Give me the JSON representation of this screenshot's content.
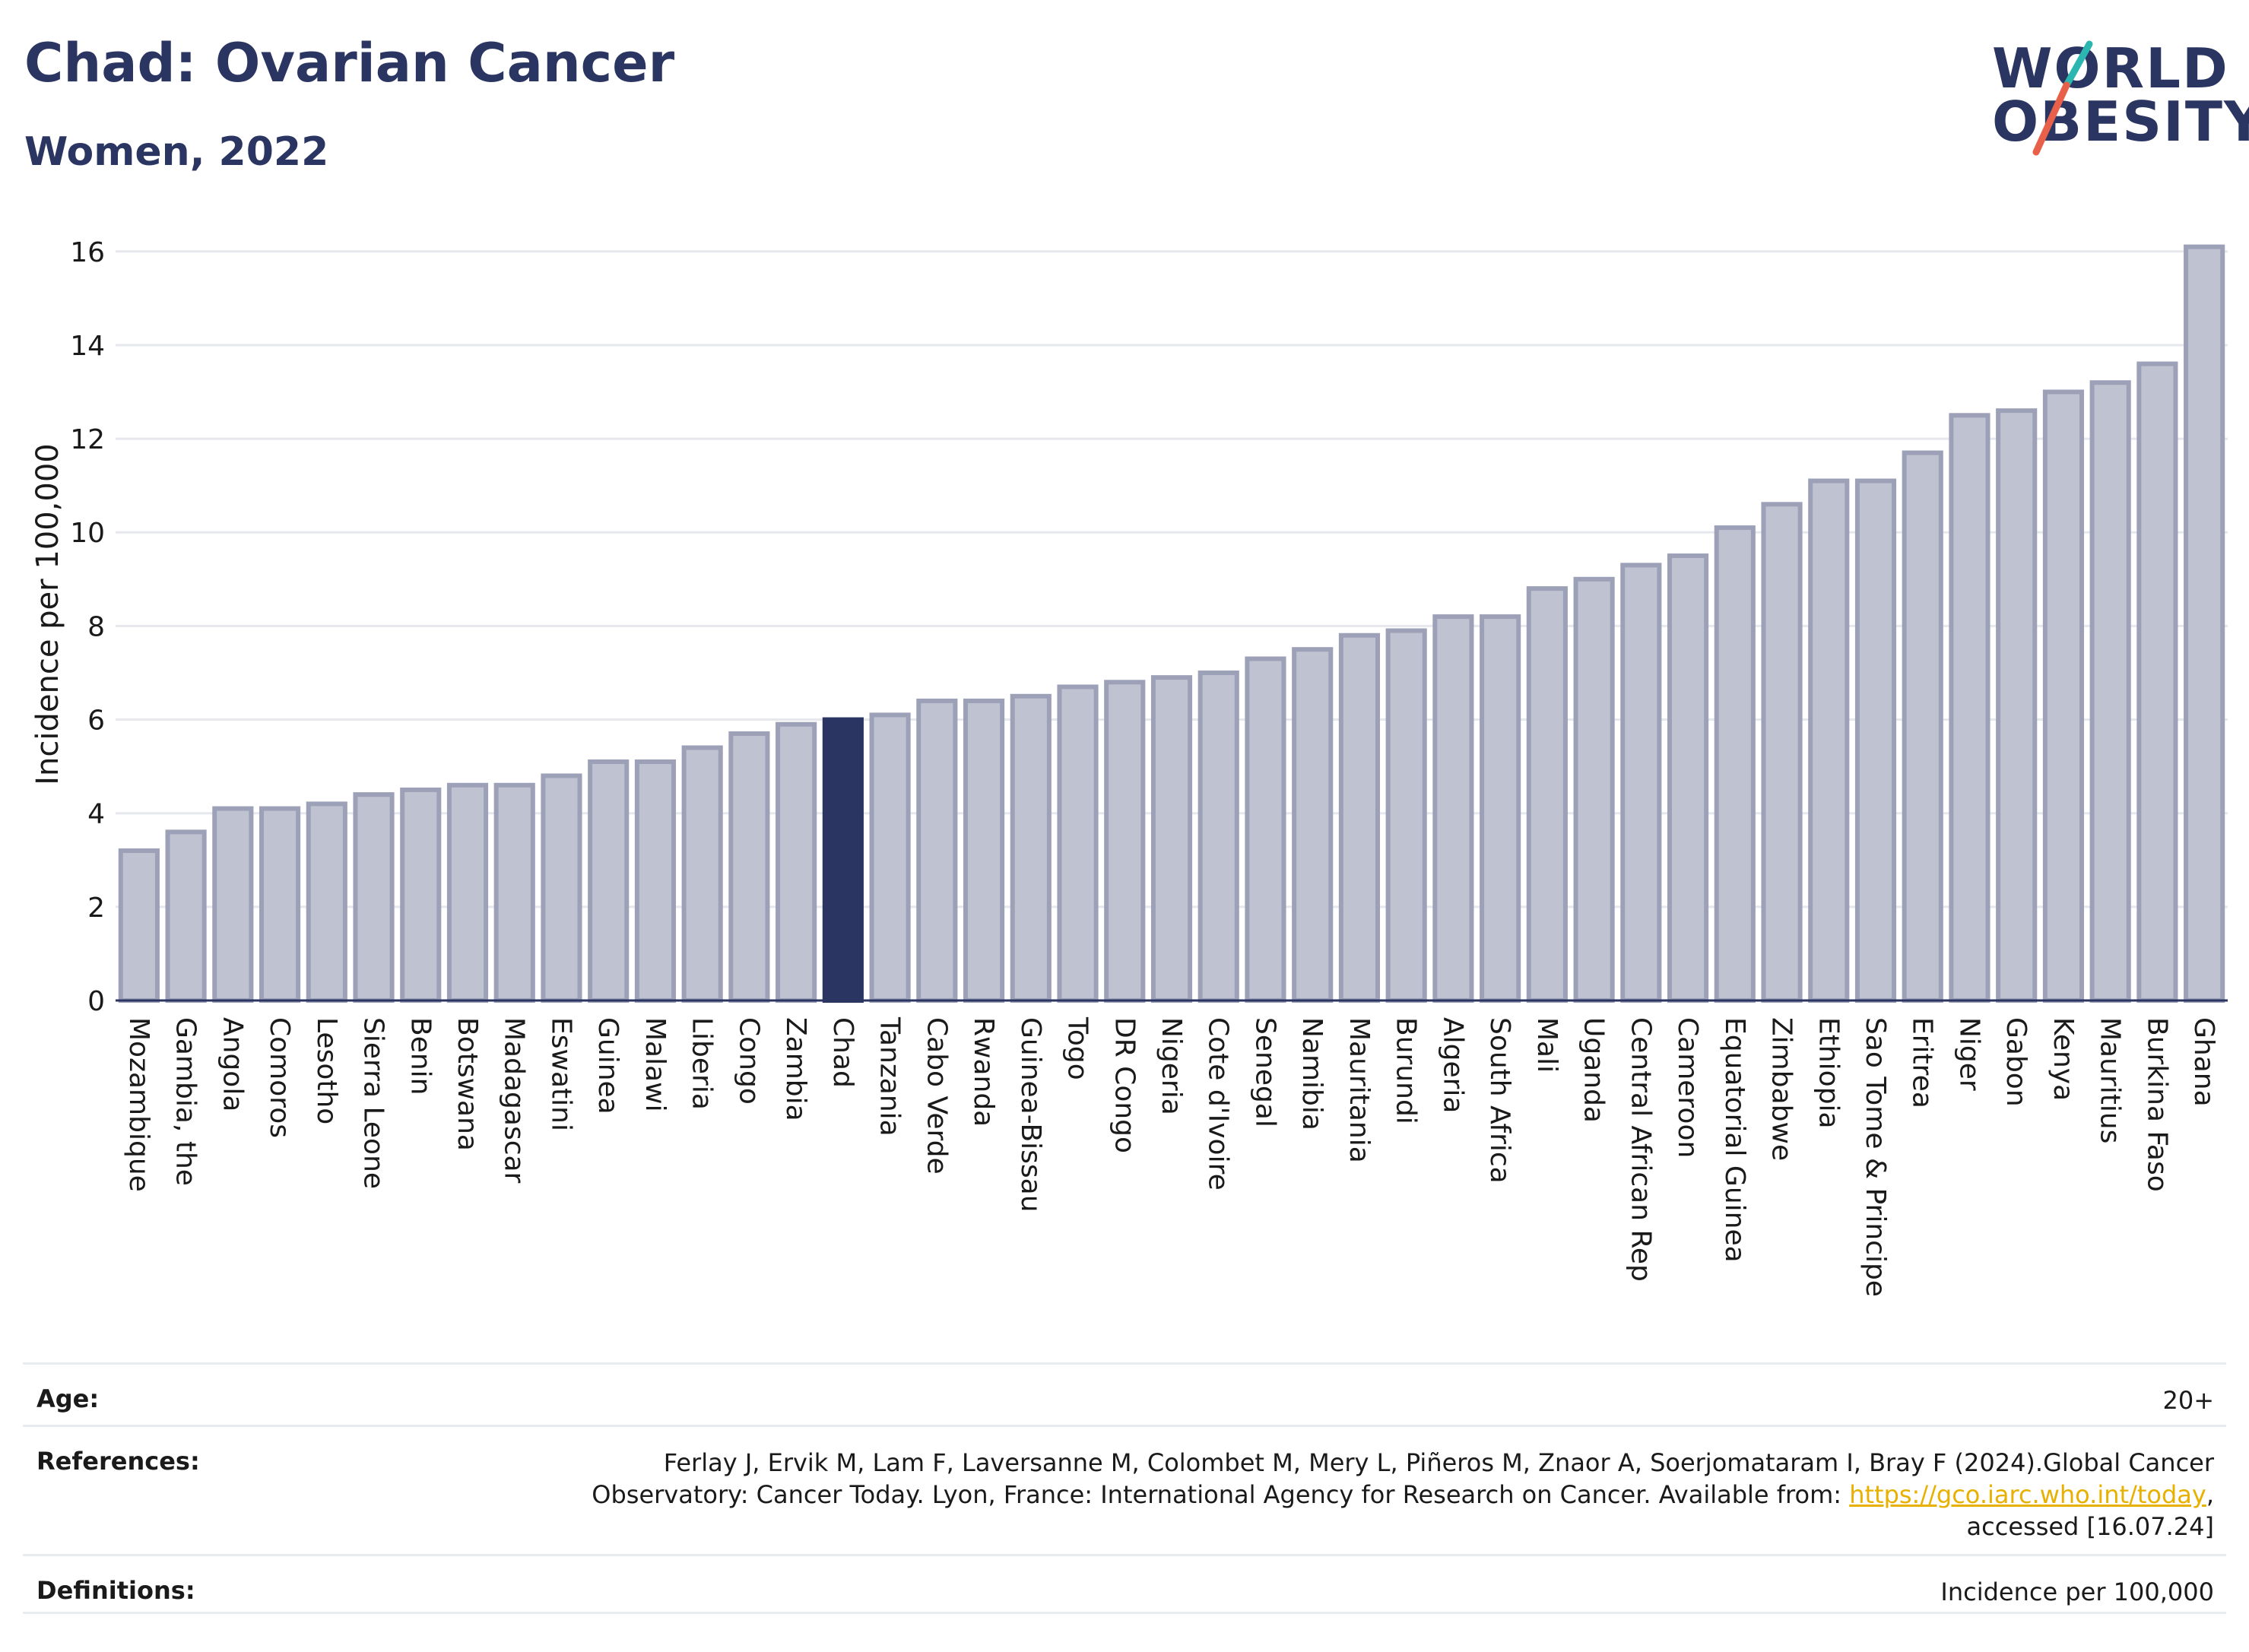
{
  "header": {
    "title": "Chad: Ovarian Cancer",
    "subtitle": "Women, 2022"
  },
  "logo": {
    "line1": "WORLD",
    "line2": "OBESITY",
    "text_color": "#2b3562",
    "slash_colors": [
      "#2bb6b0",
      "#e8604a"
    ]
  },
  "chart_data": {
    "type": "bar",
    "ylabel": "Incidence per 100,000",
    "ylim": [
      0,
      16.5
    ],
    "yticks": [
      0,
      2,
      4,
      6,
      8,
      10,
      12,
      14,
      16
    ],
    "grid": true,
    "highlight": "Chad",
    "colors": {
      "bar_fill": "#bfc2d0",
      "bar_stroke": "#9ca1b8",
      "highlight_fill": "#2b3562",
      "grid": "#e6e8ee",
      "axis": "#2b3562"
    },
    "categories": [
      "Mozambique",
      "Gambia, the",
      "Angola",
      "Comoros",
      "Lesotho",
      "Sierra Leone",
      "Benin",
      "Botswana",
      "Madagascar",
      "Eswatini",
      "Guinea",
      "Malawi",
      "Liberia",
      "Congo",
      "Zambia",
      "Chad",
      "Tanzania",
      "Cabo Verde",
      "Rwanda",
      "Guinea-Bissau",
      "Togo",
      "DR Congo",
      "Nigeria",
      "Cote d'Ivoire",
      "Senegal",
      "Namibia",
      "Mauritania",
      "Burundi",
      "Algeria",
      "South Africa",
      "Mali",
      "Uganda",
      "Central African Rep",
      "Cameroon",
      "Equatorial Guinea",
      "Zimbabwe",
      "Ethiopia",
      "Sao Tome & Principe",
      "Eritrea",
      "Niger",
      "Gabon",
      "Kenya",
      "Mauritius",
      "Burkina Faso",
      "Ghana"
    ],
    "values": [
      3.2,
      3.6,
      4.1,
      4.1,
      4.2,
      4.4,
      4.5,
      4.6,
      4.6,
      4.8,
      5.1,
      5.1,
      5.4,
      5.7,
      5.9,
      6.0,
      6.1,
      6.4,
      6.4,
      6.5,
      6.7,
      6.8,
      6.9,
      7.0,
      7.3,
      7.5,
      7.8,
      7.9,
      8.2,
      8.2,
      8.8,
      9.0,
      9.3,
      9.5,
      10.1,
      10.6,
      11.1,
      11.1,
      11.7,
      12.5,
      12.6,
      13.0,
      13.2,
      13.6,
      16.1
    ]
  },
  "footer": {
    "age_label": "Age:",
    "age_value": "20+",
    "references_label": "References:",
    "references_line1": "Ferlay J, Ervik M, Lam F, Laversanne M, Colombet M, Mery L, Piñeros M, Znaor A, Soerjomataram I, Bray F (2024).Global Cancer",
    "references_line2_prefix": "Observatory: Cancer Today. Lyon, France: International Agency for Research on Cancer. Available from: ",
    "references_link": "https://gco.iarc.who.int/today",
    "references_line2_suffix": ",",
    "references_line3": "accessed [16.07.24]",
    "definitions_label": "Definitions:",
    "definitions_value": "Incidence per 100,000"
  }
}
